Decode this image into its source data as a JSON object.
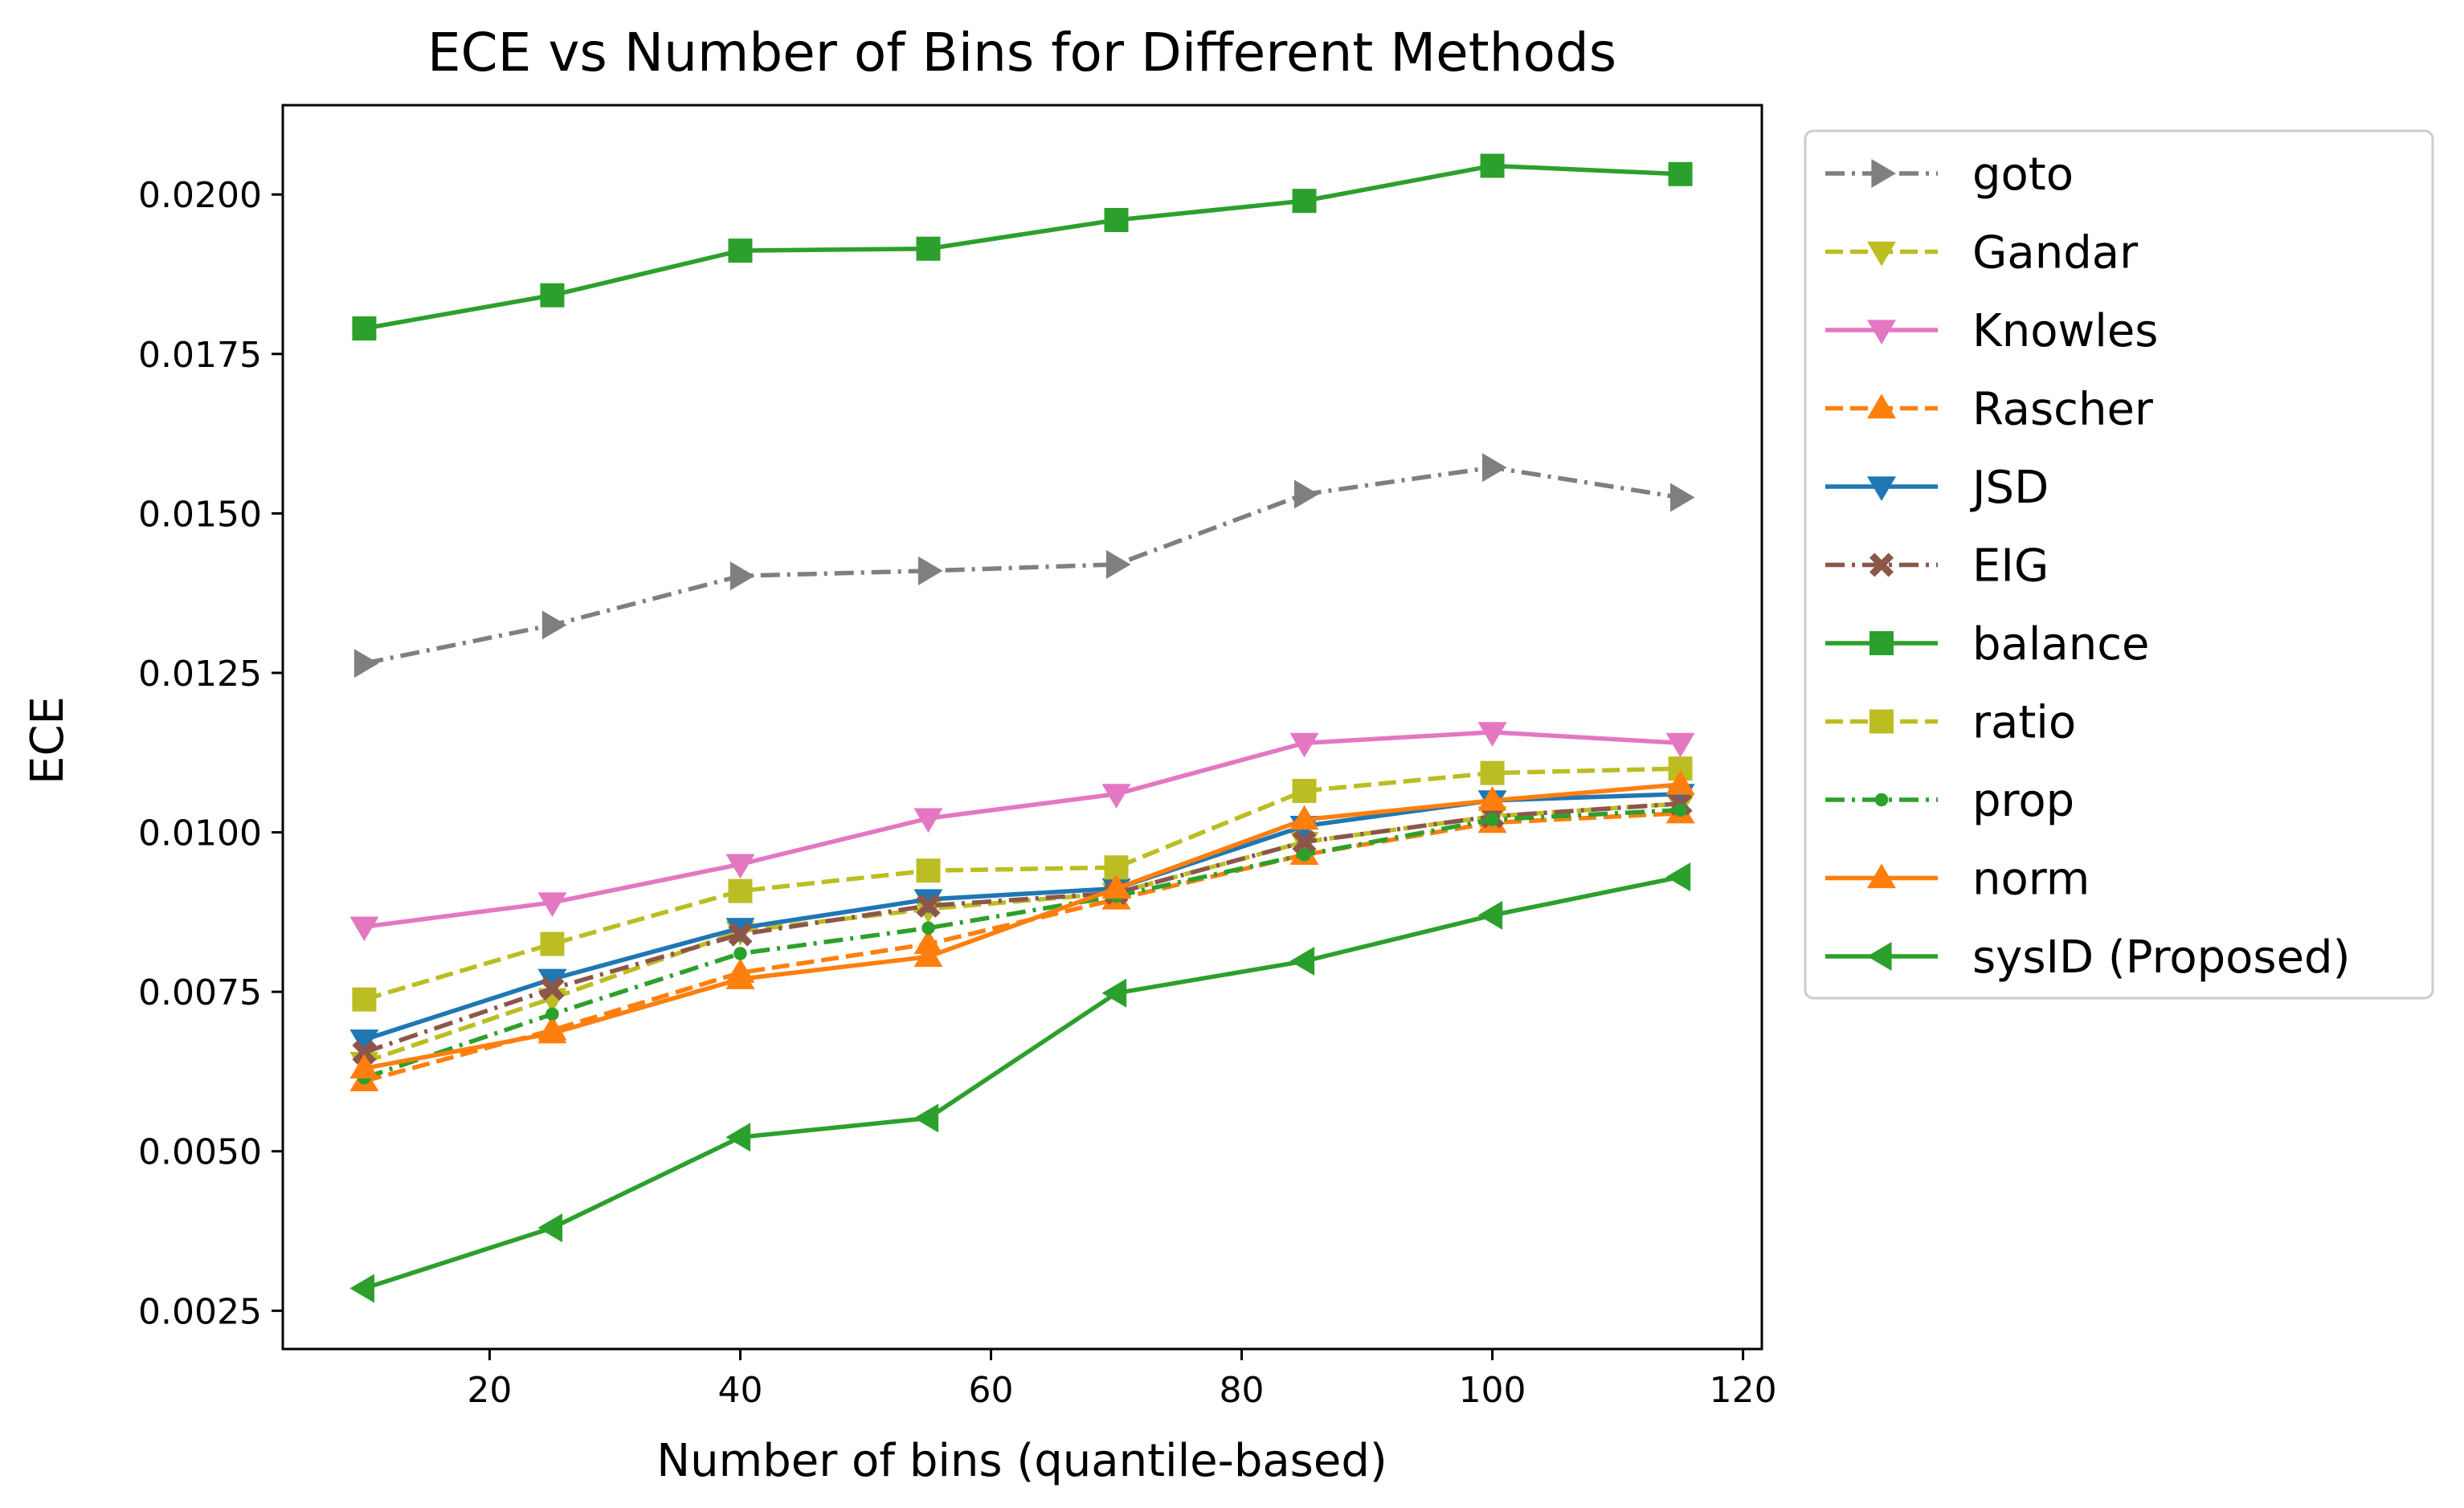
{
  "chart_data": {
    "type": "line",
    "title": "ECE vs Number of Bins for Different Methods",
    "xlabel": "Number of bins (quantile-based)",
    "ylabel": "ECE",
    "xlim": [
      3.5,
      121.5
    ],
    "ylim": [
      0.0019,
      0.0214
    ],
    "grid": false,
    "legend_position": "outside-right",
    "x": [
      10,
      25,
      40,
      55,
      70,
      85,
      100,
      115
    ],
    "xticks": [
      20,
      40,
      60,
      80,
      100,
      120
    ],
    "xtick_labels": [
      "20",
      "40",
      "60",
      "80",
      "100",
      "120"
    ],
    "yticks": [
      0.0025,
      0.005,
      0.0075,
      0.01,
      0.0125,
      0.015,
      0.0175,
      0.02
    ],
    "ytick_labels": [
      "0.0025",
      "0.0050",
      "0.0075",
      "0.0100",
      "0.0125",
      "0.0150",
      "0.0175",
      "0.0200"
    ],
    "series": [
      {
        "name": "goto",
        "color": "#7f7f7f",
        "marker": "triangle-right",
        "dash": "dashdot",
        "values": [
          0.01265,
          0.01325,
          0.01402,
          0.0141,
          0.0142,
          0.0153,
          0.01572,
          0.01525
        ]
      },
      {
        "name": "Gandar",
        "color": "#bcbd22",
        "marker": "triangle-down",
        "dash": "dashed",
        "values": [
          0.0064,
          0.0074,
          0.00845,
          0.0088,
          0.00905,
          0.00985,
          0.01025,
          0.01045
        ]
      },
      {
        "name": "Knowles",
        "color": "#e377c2",
        "marker": "triangle-down",
        "dash": "solid",
        "values": [
          0.00852,
          0.0089,
          0.0095,
          0.01022,
          0.0106,
          0.0114,
          0.01157,
          0.0114
        ]
      },
      {
        "name": "Rascher",
        "color": "#ff7f0e",
        "marker": "triangle-up",
        "dash": "dashed",
        "values": [
          0.0061,
          0.0069,
          0.0078,
          0.00825,
          0.00895,
          0.00965,
          0.01015,
          0.0103
        ]
      },
      {
        "name": "JSD",
        "color": "#1f77b4",
        "marker": "triangle-down",
        "dash": "solid",
        "values": [
          0.00675,
          0.0077,
          0.0085,
          0.00895,
          0.00912,
          0.0101,
          0.0105,
          0.0106
        ]
      },
      {
        "name": "EIG",
        "color": "#8c564b",
        "marker": "x-filled",
        "dash": "dashdot",
        "values": [
          0.00655,
          0.00755,
          0.0084,
          0.00885,
          0.00905,
          0.00985,
          0.01025,
          0.01045
        ]
      },
      {
        "name": "balance",
        "color": "#2ca02c",
        "marker": "square",
        "dash": "solid",
        "values": [
          0.0179,
          0.01842,
          0.01912,
          0.01915,
          0.0196,
          0.0199,
          0.02045,
          0.02032
        ]
      },
      {
        "name": "ratio",
        "color": "#bcbd22",
        "marker": "square",
        "dash": "dashed",
        "values": [
          0.00738,
          0.00825,
          0.00908,
          0.0094,
          0.00945,
          0.01065,
          0.01093,
          0.011
        ]
      },
      {
        "name": "prop",
        "color": "#2ca02c",
        "marker": "circle-small",
        "dash": "dashdot",
        "values": [
          0.00615,
          0.00715,
          0.0081,
          0.0085,
          0.009,
          0.00965,
          0.0102,
          0.01035
        ]
      },
      {
        "name": "norm",
        "color": "#ff7f0e",
        "marker": "triangle-up",
        "dash": "solid",
        "values": [
          0.0063,
          0.00685,
          0.0077,
          0.00805,
          0.00912,
          0.0102,
          0.0105,
          0.01075
        ]
      },
      {
        "name": "sysID (Proposed)",
        "color": "#2ca02c",
        "marker": "triangle-left",
        "dash": "solid",
        "values": [
          0.00285,
          0.0038,
          0.00522,
          0.00552,
          0.00748,
          0.00798,
          0.0087,
          0.0093
        ]
      }
    ]
  }
}
